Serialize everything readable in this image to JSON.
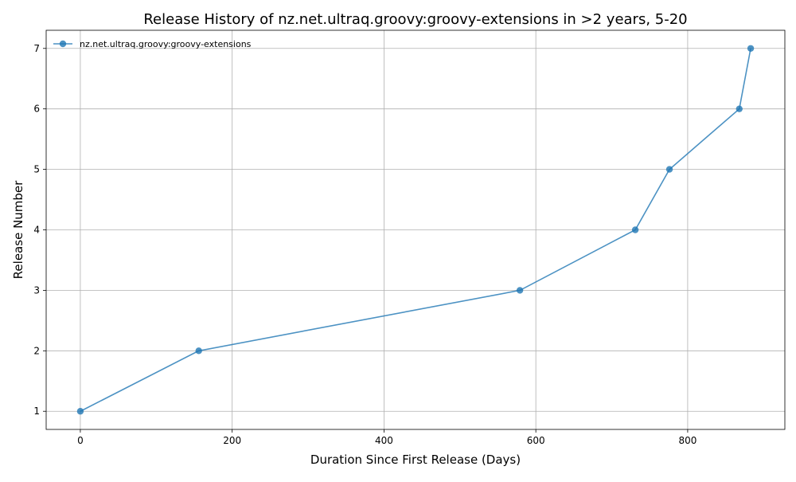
{
  "chart_data": {
    "type": "line",
    "title": "Release History of nz.net.ultraq.groovy:groovy-extensions in >2 years, 5-20",
    "xlabel": "Duration Since First Release (Days)",
    "ylabel": "Release Number",
    "xlim": [
      -45,
      928
    ],
    "ylim": [
      0.7,
      7.3
    ],
    "xticks": [
      0,
      200,
      400,
      600,
      800
    ],
    "yticks": [
      1,
      2,
      3,
      4,
      5,
      6,
      7
    ],
    "grid": true,
    "legend_position": "top-left",
    "series": [
      {
        "name": "nz.net.ultraq.groovy:groovy-extensions",
        "color": "#1f77b4",
        "marker": "circle",
        "x": [
          0,
          156,
          579,
          731,
          776,
          868,
          883
        ],
        "y": [
          1,
          2,
          3,
          4,
          5,
          6,
          7
        ]
      }
    ]
  }
}
